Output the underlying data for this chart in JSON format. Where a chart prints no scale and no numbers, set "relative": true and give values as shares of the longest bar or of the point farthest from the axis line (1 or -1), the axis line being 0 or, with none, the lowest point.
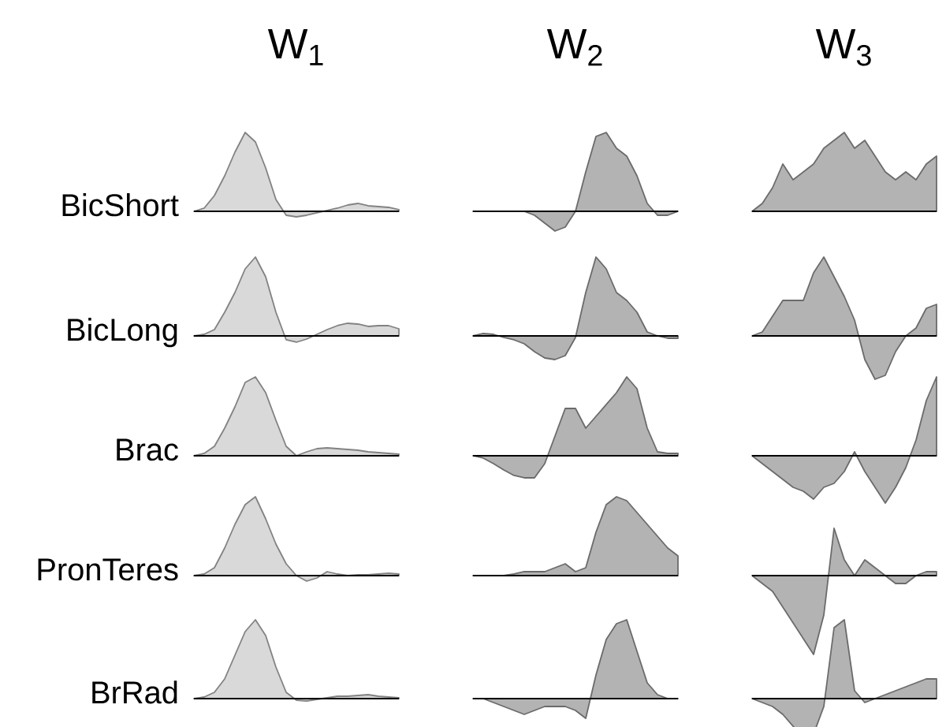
{
  "chart_data": [
    {
      "type": "area",
      "relative": true,
      "title": "W$_{1}$",
      "ylabel": "BicShort",
      "color": "#d9d9d9",
      "categories": [
        null,
        null,
        null,
        null,
        null,
        null,
        null,
        null,
        null,
        null,
        null,
        null,
        null,
        null,
        null,
        null,
        null,
        null,
        null,
        null,
        null
      ],
      "values": [
        0,
        0.04,
        0.2,
        0.45,
        0.75,
        1.0,
        0.88,
        0.55,
        0.15,
        -0.05,
        -0.07,
        -0.05,
        -0.02,
        0.01,
        0.04,
        0.08,
        0.1,
        0.07,
        0.06,
        0.05,
        0.02
      ]
    },
    {
      "type": "area",
      "relative": true,
      "title": "W$_{2}$",
      "color": "#b3b3b3",
      "categories": [
        null,
        null,
        null,
        null,
        null,
        null,
        null,
        null,
        null,
        null,
        null,
        null,
        null,
        null,
        null,
        null,
        null,
        null,
        null,
        null,
        null
      ],
      "values": [
        0,
        0,
        0,
        0,
        0,
        0,
        -0.05,
        -0.15,
        -0.25,
        -0.2,
        0,
        0.5,
        0.95,
        1.0,
        0.8,
        0.7,
        0.45,
        0.1,
        -0.05,
        -0.05,
        0
      ]
    },
    {
      "type": "area",
      "relative": true,
      "title": "W$_{3}$",
      "color": "#b3b3b3",
      "categories": [
        null,
        null,
        null,
        null,
        null,
        null,
        null,
        null,
        null,
        null,
        null,
        null,
        null,
        null,
        null,
        null,
        null,
        null,
        null
      ],
      "values": [
        0,
        0.1,
        0.3,
        0.6,
        0.4,
        0.5,
        0.6,
        0.8,
        0.9,
        1.0,
        0.8,
        0.9,
        0.7,
        0.5,
        0.4,
        0.5,
        0.4,
        0.6,
        0.7
      ]
    },
    {
      "type": "area",
      "relative": true,
      "ylabel": "BicLong",
      "color": "#d9d9d9",
      "categories": [
        null,
        null,
        null,
        null,
        null,
        null,
        null,
        null,
        null,
        null,
        null,
        null,
        null,
        null,
        null,
        null,
        null,
        null,
        null,
        null,
        null
      ],
      "values": [
        0,
        0.02,
        0.08,
        0.3,
        0.55,
        0.85,
        1.0,
        0.75,
        0.3,
        -0.05,
        -0.08,
        -0.04,
        0.02,
        0.08,
        0.13,
        0.16,
        0.15,
        0.12,
        0.13,
        0.13,
        0.09
      ]
    },
    {
      "type": "area",
      "relative": true,
      "color": "#b3b3b3",
      "categories": [
        null,
        null,
        null,
        null,
        null,
        null,
        null,
        null,
        null,
        null,
        null,
        null,
        null,
        null,
        null,
        null,
        null,
        null,
        null,
        null,
        null
      ],
      "values": [
        0,
        0.03,
        0.02,
        -0.02,
        -0.05,
        -0.1,
        -0.2,
        -0.28,
        -0.3,
        -0.25,
        -0.02,
        0.55,
        1.0,
        0.85,
        0.55,
        0.45,
        0.3,
        0.05,
        0,
        -0.03,
        -0.03
      ]
    },
    {
      "type": "area",
      "relative": true,
      "color": "#b3b3b3",
      "categories": [
        null,
        null,
        null,
        null,
        null,
        null,
        null,
        null,
        null,
        null,
        null,
        null,
        null,
        null,
        null,
        null,
        null,
        null,
        null
      ],
      "values": [
        0,
        0.05,
        0.25,
        0.45,
        0.45,
        0.45,
        0.8,
        1.0,
        0.75,
        0.5,
        0.2,
        -0.3,
        -0.55,
        -0.5,
        -0.2,
        0,
        0.1,
        0.35,
        0.4
      ]
    },
    {
      "type": "area",
      "relative": true,
      "ylabel": "Brac",
      "color": "#d9d9d9",
      "categories": [
        null,
        null,
        null,
        null,
        null,
        null,
        null,
        null,
        null,
        null,
        null,
        null,
        null,
        null,
        null,
        null,
        null,
        null,
        null,
        null,
        null
      ],
      "values": [
        0,
        0.03,
        0.12,
        0.35,
        0.62,
        0.93,
        1.0,
        0.8,
        0.45,
        0.12,
        0,
        0.05,
        0.09,
        0.1,
        0.09,
        0.08,
        0.07,
        0.05,
        0.04,
        0.03,
        0.02
      ]
    },
    {
      "type": "area",
      "relative": true,
      "color": "#b3b3b3",
      "categories": [
        null,
        null,
        null,
        null,
        null,
        null,
        null,
        null,
        null,
        null,
        null,
        null,
        null,
        null,
        null,
        null,
        null,
        null,
        null,
        null,
        null
      ],
      "values": [
        0,
        -0.03,
        -0.1,
        -0.18,
        -0.25,
        -0.28,
        -0.28,
        -0.1,
        0.25,
        0.6,
        0.6,
        0.35,
        0.5,
        0.65,
        0.8,
        1.0,
        0.85,
        0.35,
        0.05,
        0.03,
        0.03
      ]
    },
    {
      "type": "area",
      "relative": true,
      "color": "#b3b3b3",
      "categories": [
        null,
        null,
        null,
        null,
        null,
        null,
        null,
        null,
        null,
        null,
        null,
        null,
        null,
        null,
        null,
        null,
        null,
        null,
        null
      ],
      "values": [
        0,
        -0.1,
        -0.2,
        -0.3,
        -0.4,
        -0.45,
        -0.55,
        -0.4,
        -0.35,
        -0.2,
        0.05,
        -0.2,
        -0.4,
        -0.6,
        -0.4,
        -0.15,
        0.2,
        0.7,
        1.0
      ]
    },
    {
      "type": "area",
      "relative": true,
      "ylabel": "PronTeres",
      "color": "#d9d9d9",
      "categories": [
        null,
        null,
        null,
        null,
        null,
        null,
        null,
        null,
        null,
        null,
        null,
        null,
        null,
        null,
        null,
        null,
        null,
        null,
        null,
        null,
        null
      ],
      "values": [
        0,
        0.02,
        0.1,
        0.35,
        0.65,
        0.9,
        1.0,
        0.72,
        0.4,
        0.15,
        0,
        -0.07,
        -0.03,
        0.05,
        0.02,
        0,
        0.01,
        0.01,
        0.02,
        0.03,
        0.02
      ]
    },
    {
      "type": "area",
      "relative": true,
      "color": "#b3b3b3",
      "categories": [
        null,
        null,
        null,
        null,
        null,
        null,
        null,
        null,
        null,
        null,
        null,
        null,
        null,
        null,
        null,
        null,
        null,
        null,
        null,
        null,
        null
      ],
      "values": [
        0,
        0,
        0,
        0,
        0.02,
        0.05,
        0.05,
        0.05,
        0.1,
        0.15,
        0.05,
        0.1,
        0.55,
        0.9,
        1.0,
        0.95,
        0.8,
        0.65,
        0.5,
        0.35,
        0.25
      ]
    },
    {
      "type": "area",
      "relative": true,
      "color": "#b3b3b3",
      "categories": [
        null,
        null,
        null,
        null,
        null,
        null,
        null,
        null,
        null,
        null,
        null,
        null,
        null,
        null,
        null,
        null,
        null,
        null,
        null
      ],
      "values": [
        0,
        -0.1,
        -0.2,
        -0.4,
        -0.6,
        -0.8,
        -1.0,
        -0.5,
        0.6,
        0.2,
        0,
        0.2,
        0.1,
        0,
        -0.1,
        -0.1,
        0,
        0.05,
        0.05
      ]
    },
    {
      "type": "area",
      "relative": true,
      "ylabel": "BrRad",
      "color": "#d9d9d9",
      "categories": [
        null,
        null,
        null,
        null,
        null,
        null,
        null,
        null,
        null,
        null,
        null,
        null,
        null,
        null,
        null,
        null,
        null,
        null,
        null,
        null,
        null
      ],
      "values": [
        0,
        0.02,
        0.08,
        0.25,
        0.55,
        0.85,
        1.0,
        0.8,
        0.4,
        0.08,
        -0.02,
        -0.03,
        -0.01,
        0.01,
        0.03,
        0.03,
        0.04,
        0.05,
        0.03,
        0.02,
        0.01
      ]
    },
    {
      "type": "area",
      "relative": true,
      "color": "#b3b3b3",
      "categories": [
        null,
        null,
        null,
        null,
        null,
        null,
        null,
        null,
        null,
        null,
        null,
        null,
        null,
        null,
        null,
        null,
        null,
        null,
        null,
        null,
        null
      ],
      "values": [
        0,
        0,
        -0.05,
        -0.1,
        -0.15,
        -0.2,
        -0.15,
        -0.1,
        -0.1,
        -0.1,
        -0.15,
        -0.25,
        0.3,
        0.75,
        0.95,
        1.0,
        0.6,
        0.2,
        0.05,
        0,
        0
      ]
    },
    {
      "type": "area",
      "relative": true,
      "color": "#b3b3b3",
      "categories": [
        null,
        null,
        null,
        null,
        null,
        null,
        null,
        null,
        null,
        null,
        null,
        null,
        null,
        null,
        null,
        null,
        null,
        null,
        null
      ],
      "values": [
        0,
        -0.05,
        -0.1,
        -0.2,
        -0.35,
        -0.5,
        -0.45,
        -0.1,
        0.9,
        1.0,
        0.1,
        -0.05,
        0,
        0.05,
        0.1,
        0.15,
        0.2,
        0.25,
        0.25
      ]
    }
  ]
}
